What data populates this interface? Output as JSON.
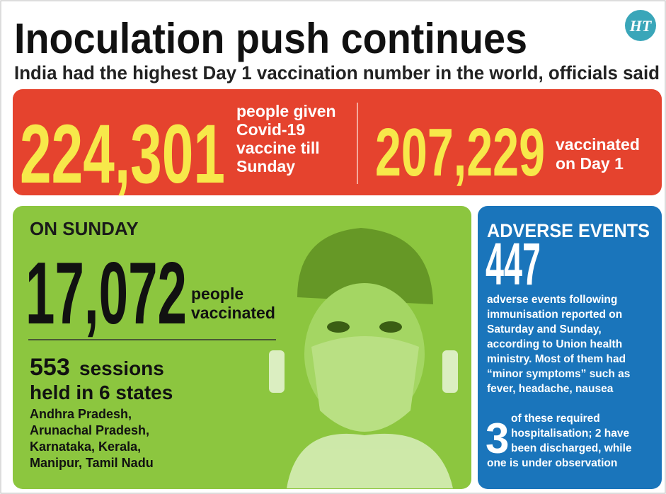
{
  "header": {
    "title": "Inoculation push continues",
    "subtitle": "India had the highest Day 1 vaccination number in the world, officials said",
    "logo": "HT"
  },
  "banner": {
    "stat1": {
      "number": "224,301",
      "lines": [
        "people given",
        "Covid-19",
        "vaccine till",
        "Sunday"
      ]
    },
    "stat2": {
      "number": "207,229",
      "lines": [
        "vaccinated",
        "on Day 1"
      ]
    }
  },
  "sunday": {
    "heading": "ON SUNDAY",
    "number": "17,072",
    "lines": [
      "people",
      "vaccinated"
    ],
    "sessions_number": "553",
    "sessions_word": "sessions",
    "sessions_line": "held in 6 states",
    "states": [
      "Andhra Pradesh,",
      "Arunachal Pradesh,",
      "Karnataka, Kerala,",
      "Manipur, Tamil Nadu"
    ]
  },
  "adverse": {
    "heading": "ADVERSE EVENTS",
    "number": "447",
    "lines": [
      "adverse events following",
      "immunisation reported on",
      "Saturday and Sunday,",
      "according to Union health",
      "ministry. Most of them had",
      "“minor symptoms” such as",
      "fever, headache, nausea"
    ],
    "hosp_number": "3",
    "hosp_lines": [
      "of these required",
      "hospitalisation; 2 have",
      "been discharged, while",
      "one is under observation"
    ]
  }
}
